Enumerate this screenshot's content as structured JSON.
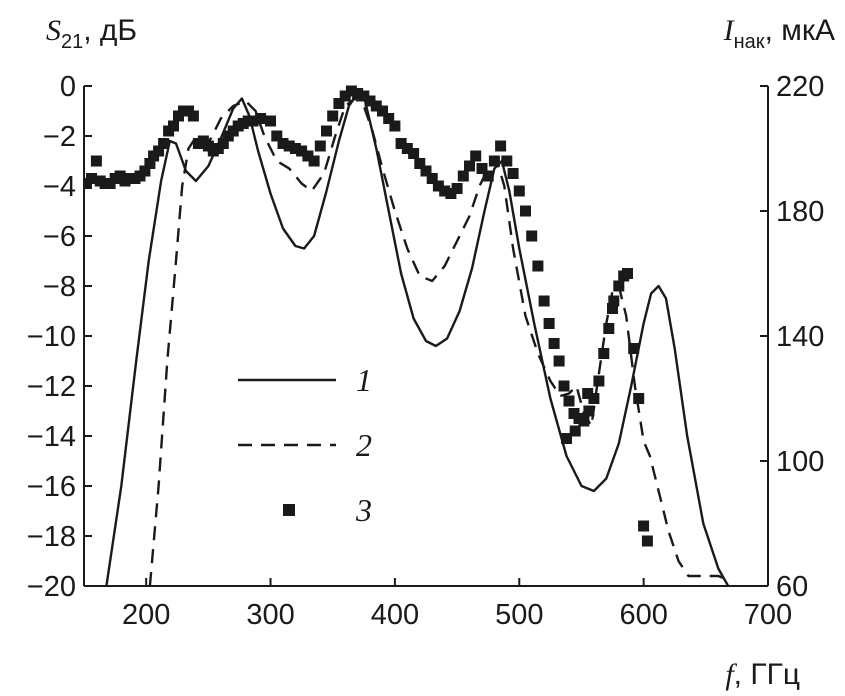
{
  "chart_data": {
    "type": "line",
    "title": "",
    "xlabel": {
      "symbol": "f",
      "unit": ", ГГц"
    },
    "ylabel_left": {
      "symbol": "S",
      "subscript": "21",
      "unit": ", дБ"
    },
    "ylabel_right": {
      "symbol": "I",
      "subscript": "нак",
      "unit": ", мкА"
    },
    "xlim": [
      150,
      700
    ],
    "ylim_left": [
      -20,
      0
    ],
    "ylim_right": [
      60,
      220
    ],
    "x_ticks": [
      200,
      300,
      400,
      500,
      600,
      700
    ],
    "x_tick_labels": [
      "200",
      "300",
      "400",
      "500",
      "600",
      "700"
    ],
    "y_left_ticks": [
      0,
      -2,
      -4,
      -6,
      -8,
      -10,
      -12,
      -14,
      -16,
      -18,
      -20
    ],
    "y_left_tick_labels": [
      "0",
      "−2",
      "−4",
      "−6",
      "−8",
      "−10",
      "−12",
      "−14",
      "−16",
      "−18",
      "−20"
    ],
    "y_right_ticks": [
      220,
      180,
      140,
      100,
      60
    ],
    "y_right_tick_labels": [
      "220",
      "180",
      "140",
      "100",
      "60"
    ],
    "legend": [
      {
        "label": "1",
        "style": "solid"
      },
      {
        "label": "2",
        "style": "dashed"
      },
      {
        "label": "3",
        "style": "markers"
      }
    ],
    "series": [
      {
        "name": "1",
        "style": "solid",
        "axis": "left",
        "points": [
          [
            168,
            -20
          ],
          [
            180,
            -16
          ],
          [
            192,
            -11
          ],
          [
            202,
            -7
          ],
          [
            212,
            -3.8
          ],
          [
            219,
            -2.2
          ],
          [
            224,
            -2.3
          ],
          [
            232,
            -3.4
          ],
          [
            240,
            -3.8
          ],
          [
            250,
            -3.2
          ],
          [
            260,
            -2.1
          ],
          [
            270,
            -0.9
          ],
          [
            277,
            -0.5
          ],
          [
            283,
            -1.2
          ],
          [
            290,
            -2.6
          ],
          [
            300,
            -4.3
          ],
          [
            310,
            -5.7
          ],
          [
            320,
            -6.4
          ],
          [
            327,
            -6.5
          ],
          [
            335,
            -6.0
          ],
          [
            345,
            -4.2
          ],
          [
            355,
            -2.2
          ],
          [
            363,
            -0.8
          ],
          [
            370,
            -0.3
          ],
          [
            376,
            -0.6
          ],
          [
            385,
            -2.5
          ],
          [
            395,
            -5.0
          ],
          [
            405,
            -7.5
          ],
          [
            415,
            -9.3
          ],
          [
            425,
            -10.2
          ],
          [
            433,
            -10.4
          ],
          [
            442,
            -10.1
          ],
          [
            452,
            -9.0
          ],
          [
            462,
            -7.3
          ],
          [
            472,
            -5.0
          ],
          [
            480,
            -3.3
          ],
          [
            486,
            -3.0
          ],
          [
            492,
            -4.2
          ],
          [
            500,
            -6.5
          ],
          [
            512,
            -9.5
          ],
          [
            525,
            -12.5
          ],
          [
            538,
            -14.8
          ],
          [
            550,
            -16.0
          ],
          [
            560,
            -16.2
          ],
          [
            570,
            -15.7
          ],
          [
            580,
            -14.3
          ],
          [
            590,
            -12.0
          ],
          [
            600,
            -9.5
          ],
          [
            606,
            -8.3
          ],
          [
            612,
            -8.0
          ],
          [
            618,
            -8.5
          ],
          [
            625,
            -10.5
          ],
          [
            635,
            -14.0
          ],
          [
            648,
            -17.5
          ],
          [
            660,
            -19.3
          ],
          [
            668,
            -20
          ]
        ]
      },
      {
        "name": "2",
        "style": "dashed",
        "axis": "left",
        "points": [
          [
            203,
            -20
          ],
          [
            210,
            -16
          ],
          [
            217,
            -11
          ],
          [
            224,
            -7
          ],
          [
            229,
            -4
          ],
          [
            234,
            -2.5
          ],
          [
            238,
            -2.2
          ],
          [
            245,
            -2.5
          ],
          [
            252,
            -2.1
          ],
          [
            260,
            -1.3
          ],
          [
            270,
            -0.8
          ],
          [
            280,
            -0.6
          ],
          [
            288,
            -1.0
          ],
          [
            295,
            -2.0
          ],
          [
            305,
            -3.0
          ],
          [
            315,
            -3.3
          ],
          [
            325,
            -3.9
          ],
          [
            333,
            -4.2
          ],
          [
            343,
            -3.5
          ],
          [
            352,
            -2.0
          ],
          [
            360,
            -0.8
          ],
          [
            368,
            -0.5
          ],
          [
            375,
            -0.8
          ],
          [
            382,
            -1.8
          ],
          [
            390,
            -3.3
          ],
          [
            400,
            -5.0
          ],
          [
            410,
            -6.5
          ],
          [
            420,
            -7.6
          ],
          [
            430,
            -7.8
          ],
          [
            440,
            -7.2
          ],
          [
            450,
            -6.2
          ],
          [
            460,
            -5.2
          ],
          [
            468,
            -4.0
          ],
          [
            476,
            -3.2
          ],
          [
            482,
            -3.0
          ],
          [
            488,
            -4.0
          ],
          [
            495,
            -6.5
          ],
          [
            505,
            -9.2
          ],
          [
            515,
            -10.7
          ],
          [
            525,
            -11.8
          ],
          [
            533,
            -12.4
          ],
          [
            540,
            -12.3
          ],
          [
            546,
            -12.0
          ],
          [
            552,
            -13.1
          ],
          [
            558,
            -13.6
          ],
          [
            564,
            -11.5
          ],
          [
            570,
            -9.5
          ],
          [
            575,
            -8.2
          ],
          [
            580,
            -8.0
          ],
          [
            586,
            -9.2
          ],
          [
            593,
            -12.0
          ],
          [
            600,
            -14.2
          ],
          [
            605,
            -14.8
          ],
          [
            612,
            -16.2
          ],
          [
            620,
            -17.8
          ],
          [
            628,
            -19.0
          ],
          [
            636,
            -19.6
          ],
          [
            648,
            -19.6
          ],
          [
            660,
            -19.6
          ],
          [
            670,
            -19.8
          ]
        ]
      },
      {
        "name": "3",
        "style": "markers",
        "axis": "left",
        "points": [
          [
            152,
            -3.9
          ],
          [
            156,
            -3.7
          ],
          [
            160,
            -3.0
          ],
          [
            163,
            -3.8
          ],
          [
            167,
            -3.9
          ],
          [
            171,
            -3.9
          ],
          [
            175,
            -3.7
          ],
          [
            179,
            -3.6
          ],
          [
            183,
            -3.8
          ],
          [
            187,
            -3.7
          ],
          [
            191,
            -3.7
          ],
          [
            195,
            -3.6
          ],
          [
            199,
            -3.4
          ],
          [
            203,
            -3.1
          ],
          [
            206,
            -2.8
          ],
          [
            210,
            -2.6
          ],
          [
            214,
            -2.3
          ],
          [
            218,
            -1.8
          ],
          [
            222,
            -1.6
          ],
          [
            226,
            -1.2
          ],
          [
            230,
            -1.0
          ],
          [
            234,
            -1.0
          ],
          [
            238,
            -1.2
          ],
          [
            242,
            -2.3
          ],
          [
            246,
            -2.2
          ],
          [
            250,
            -2.4
          ],
          [
            254,
            -2.6
          ],
          [
            258,
            -2.5
          ],
          [
            262,
            -2.3
          ],
          [
            266,
            -2.0
          ],
          [
            270,
            -1.8
          ],
          [
            274,
            -1.6
          ],
          [
            278,
            -1.5
          ],
          [
            282,
            -1.4
          ],
          [
            286,
            -1.4
          ],
          [
            292,
            -1.3
          ],
          [
            300,
            -1.4
          ],
          [
            305,
            -2.0
          ],
          [
            310,
            -2.3
          ],
          [
            315,
            -2.4
          ],
          [
            320,
            -2.5
          ],
          [
            325,
            -2.6
          ],
          [
            330,
            -2.8
          ],
          [
            335,
            -3.0
          ],
          [
            340,
            -2.4
          ],
          [
            345,
            -1.8
          ],
          [
            350,
            -1.2
          ],
          [
            355,
            -0.7
          ],
          [
            360,
            -0.4
          ],
          [
            365,
            -0.2
          ],
          [
            370,
            -0.3
          ],
          [
            375,
            -0.4
          ],
          [
            380,
            -0.6
          ],
          [
            385,
            -0.8
          ],
          [
            390,
            -1.0
          ],
          [
            395,
            -1.3
          ],
          [
            400,
            -1.6
          ],
          [
            405,
            -2.3
          ],
          [
            410,
            -2.5
          ],
          [
            415,
            -2.7
          ],
          [
            420,
            -3.1
          ],
          [
            425,
            -3.4
          ],
          [
            430,
            -3.7
          ],
          [
            435,
            -4.0
          ],
          [
            440,
            -4.2
          ],
          [
            445,
            -4.3
          ],
          [
            450,
            -4.1
          ],
          [
            455,
            -3.6
          ],
          [
            460,
            -3.2
          ],
          [
            465,
            -2.8
          ],
          [
            470,
            -3.3
          ],
          [
            475,
            -3.6
          ],
          [
            480,
            -3.0
          ],
          [
            485,
            -2.4
          ],
          [
            490,
            -3.0
          ],
          [
            495,
            -3.5
          ],
          [
            500,
            -4.2
          ],
          [
            505,
            -5.0
          ],
          [
            510,
            -6.0
          ],
          [
            515,
            -7.2
          ],
          [
            520,
            -8.6
          ],
          [
            524,
            -9.5
          ],
          [
            528,
            -10.3
          ],
          [
            532,
            -11.0
          ],
          [
            536,
            -12.0
          ],
          [
            540,
            -12.6
          ],
          [
            544,
            -13.1
          ],
          [
            548,
            -13.3
          ],
          [
            552,
            -13.4
          ],
          [
            556,
            -13.0
          ],
          [
            560,
            -12.5
          ],
          [
            564,
            -11.8
          ],
          [
            568,
            -10.7
          ],
          [
            572,
            -9.7
          ],
          [
            576,
            -8.6
          ],
          [
            580,
            -8.0
          ],
          [
            584,
            -7.6
          ],
          [
            587,
            -7.5
          ],
          [
            592,
            -10.5
          ],
          [
            596,
            -12.5
          ],
          [
            600,
            -17.6
          ],
          [
            603,
            -18.2
          ],
          [
            538,
            -14.1
          ],
          [
            545,
            -13.8
          ],
          [
            555,
            -12.3
          ],
          [
            575,
            -8.9
          ]
        ]
      }
    ]
  }
}
